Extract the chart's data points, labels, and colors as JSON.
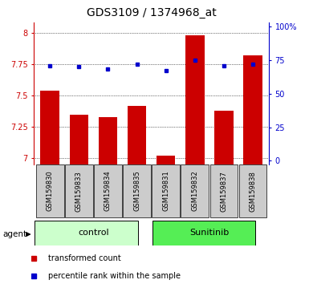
{
  "title": "GDS3109 / 1374968_at",
  "samples": [
    "GSM159830",
    "GSM159833",
    "GSM159834",
    "GSM159835",
    "GSM159831",
    "GSM159832",
    "GSM159837",
    "GSM159838"
  ],
  "red_values": [
    7.54,
    7.35,
    7.33,
    7.42,
    7.02,
    7.98,
    7.38,
    7.82
  ],
  "blue_values": [
    7.74,
    7.73,
    7.71,
    7.75,
    7.7,
    7.78,
    7.74,
    7.75
  ],
  "ylim_left": [
    6.95,
    8.08
  ],
  "ylim_right": [
    -3,
    103
  ],
  "yticks_left": [
    7.0,
    7.25,
    7.5,
    7.75,
    8.0
  ],
  "yticks_right": [
    0,
    25,
    50,
    75,
    100
  ],
  "ytick_labels_left": [
    "7",
    "7.25",
    "7.5",
    "7.75",
    "8"
  ],
  "ytick_labels_right": [
    "0",
    "25",
    "50",
    "75",
    "100%"
  ],
  "bar_color": "#cc0000",
  "dot_color": "#0000cc",
  "control_bg": "#ccffcc",
  "sunitinib_bg": "#55ee55",
  "sample_bg": "#cccccc",
  "legend_red_label": "transformed count",
  "legend_blue_label": "percentile rank within the sample",
  "agent_label": "agent",
  "control_label": "control",
  "sunitinib_label": "Sunitinib",
  "title_fontsize": 10,
  "tick_fontsize": 7,
  "label_fontsize": 6,
  "group_fontsize": 8,
  "legend_fontsize": 7
}
